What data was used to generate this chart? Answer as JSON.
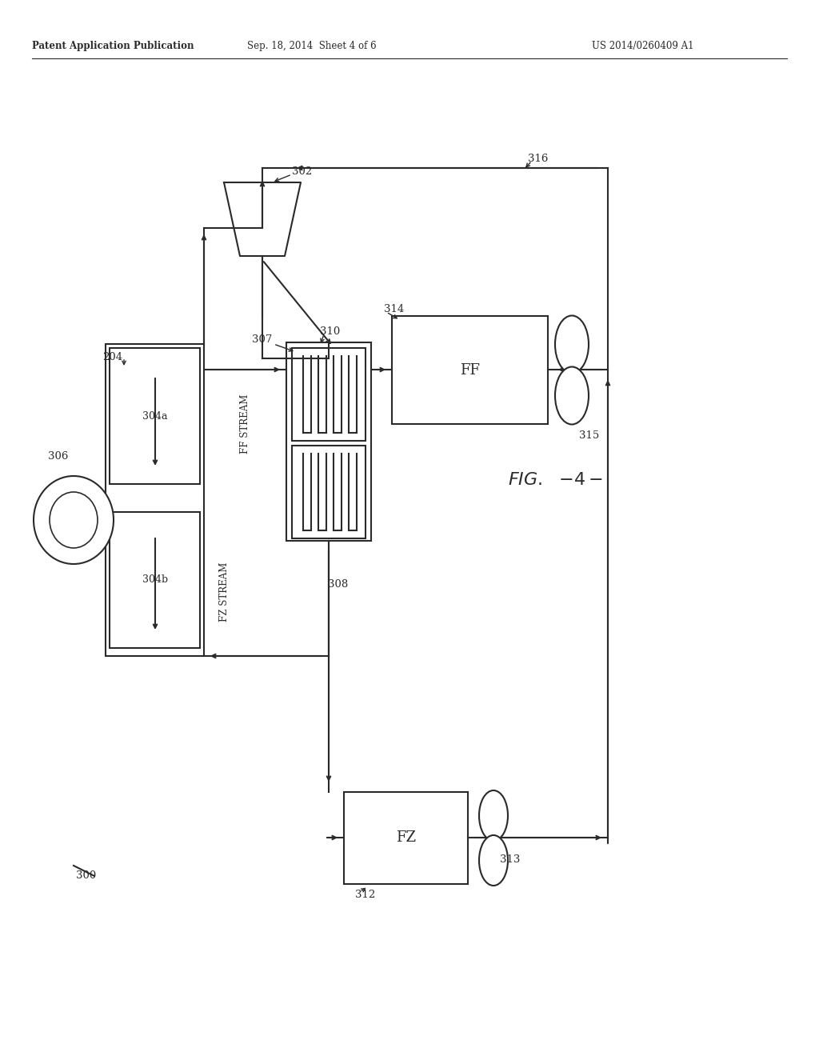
{
  "bg_color": "#ffffff",
  "line_color": "#2a2a2a",
  "header_left": "Patent Application Publication",
  "header_center": "Sep. 18, 2014  Sheet 4 of 6",
  "header_right": "US 2014/0260409 A1"
}
